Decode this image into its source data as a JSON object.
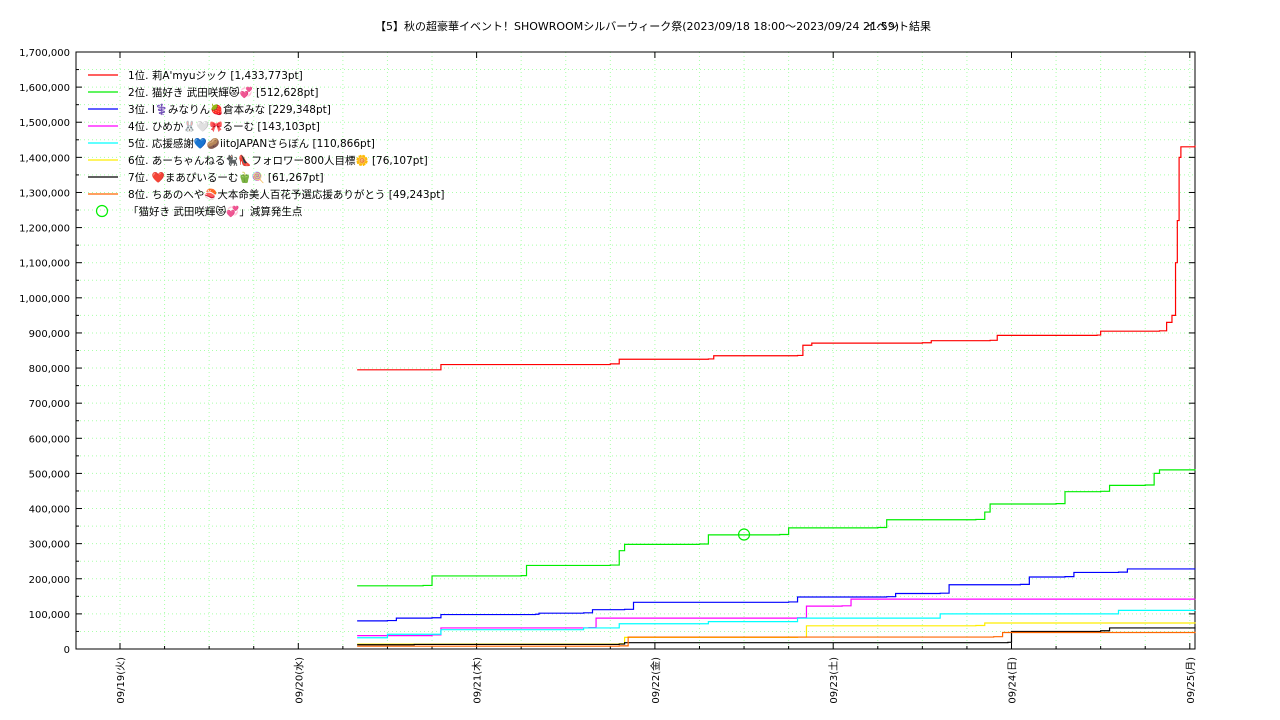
{
  "chart_data": {
    "type": "line",
    "title": "【5】秋の超豪華イベント！SHOWROOMシルバーウィーク祭(2023/09/18 18:00～2023/09/24 21:59)",
    "subtitle": "イベント結果",
    "x_tick_labels": [
      "09/19(火)",
      "09/20(水)",
      "09/21(木)",
      "09/22(金)",
      "09/23(土)",
      "09/24(日)",
      "09/25(月)"
    ],
    "xlim_days": [
      0,
      6
    ],
    "ylim": [
      0,
      1700000
    ],
    "y_tick_step": 100000,
    "y_tick_labels": [
      "0",
      "100,000",
      "200,000",
      "300,000",
      "400,000",
      "500,000",
      "600,000",
      "700,000",
      "800,000",
      "900,000",
      "1,000,000",
      "1,100,000",
      "1,200,000",
      "1,300,000",
      "1,400,000",
      "1,500,000",
      "1,600,000",
      "1,700,000"
    ],
    "grid": true,
    "legend_position": "top-left",
    "series": [
      {
        "name": "1位. 莉A'myuジック [1,433,773pt]",
        "color": "#ff0000",
        "points": [
          [
            1.33,
            795000
          ],
          [
            1.75,
            795000
          ],
          [
            1.8,
            810000
          ],
          [
            2.75,
            812000
          ],
          [
            2.8,
            825000
          ],
          [
            3.3,
            826000
          ],
          [
            3.33,
            835000
          ],
          [
            3.8,
            836000
          ],
          [
            3.83,
            865000
          ],
          [
            3.88,
            871000
          ],
          [
            4.5,
            872000
          ],
          [
            4.55,
            878000
          ],
          [
            4.88,
            879000
          ],
          [
            4.92,
            893000
          ],
          [
            5.48,
            894000
          ],
          [
            5.5,
            905000
          ],
          [
            5.83,
            906000
          ],
          [
            5.87,
            930000
          ],
          [
            5.9,
            950000
          ],
          [
            5.92,
            1100000
          ],
          [
            5.93,
            1220000
          ],
          [
            5.94,
            1400000
          ],
          [
            5.95,
            1430000
          ],
          [
            6.05,
            1433773
          ]
        ]
      },
      {
        "name": "2位. 猫好き 武田咲輝😻💞 [512,628pt]",
        "color": "#00ee00",
        "points": [
          [
            1.33,
            180000
          ],
          [
            1.7,
            181000
          ],
          [
            1.75,
            208000
          ],
          [
            2.25,
            209000
          ],
          [
            2.28,
            238000
          ],
          [
            2.75,
            239000
          ],
          [
            2.8,
            280000
          ],
          [
            2.83,
            298000
          ],
          [
            3.25,
            299000
          ],
          [
            3.3,
            325000
          ],
          [
            3.7,
            326000
          ],
          [
            3.75,
            345000
          ],
          [
            4.25,
            346000
          ],
          [
            4.3,
            368000
          ],
          [
            4.8,
            369000
          ],
          [
            4.85,
            390000
          ],
          [
            4.88,
            413000
          ],
          [
            5.25,
            414000
          ],
          [
            5.3,
            448000
          ],
          [
            5.5,
            449000
          ],
          [
            5.55,
            466000
          ],
          [
            5.75,
            467000
          ],
          [
            5.8,
            500000
          ],
          [
            5.83,
            510000
          ],
          [
            6.05,
            512628
          ]
        ]
      },
      {
        "name": "3位. I⚕️みなりん🍓倉本みな [229,348pt]",
        "color": "#0000ff",
        "points": [
          [
            1.33,
            80000
          ],
          [
            1.5,
            81000
          ],
          [
            1.55,
            88000
          ],
          [
            1.75,
            89000
          ],
          [
            1.8,
            98000
          ],
          [
            2.33,
            99000
          ],
          [
            2.35,
            102000
          ],
          [
            2.6,
            103000
          ],
          [
            2.65,
            112000
          ],
          [
            2.83,
            113000
          ],
          [
            2.88,
            133000
          ],
          [
            3.75,
            134000
          ],
          [
            3.8,
            148000
          ],
          [
            4.3,
            149000
          ],
          [
            4.35,
            158000
          ],
          [
            4.6,
            159000
          ],
          [
            4.65,
            183000
          ],
          [
            5.05,
            184000
          ],
          [
            5.1,
            205000
          ],
          [
            5.3,
            206000
          ],
          [
            5.35,
            218000
          ],
          [
            5.6,
            219000
          ],
          [
            5.65,
            228000
          ],
          [
            6.05,
            229348
          ]
        ]
      },
      {
        "name": "4位. ひめか🐰🤍🎀るーむ [143,103pt]",
        "color": "#ff00ff",
        "points": [
          [
            1.33,
            38000
          ],
          [
            1.75,
            40000
          ],
          [
            1.8,
            60000
          ],
          [
            2.63,
            61000
          ],
          [
            2.67,
            88000
          ],
          [
            3.8,
            89000
          ],
          [
            3.85,
            122000
          ],
          [
            4.05,
            123000
          ],
          [
            4.1,
            142000
          ],
          [
            6.05,
            143103
          ]
        ]
      },
      {
        "name": "5位. 応援感謝💙🥔iitoJAPANさらぼん [110,866pt]",
        "color": "#00ffff",
        "points": [
          [
            1.33,
            32000
          ],
          [
            1.5,
            42000
          ],
          [
            1.8,
            55000
          ],
          [
            2.6,
            60000
          ],
          [
            2.8,
            72000
          ],
          [
            3.3,
            78000
          ],
          [
            3.8,
            88000
          ],
          [
            4.6,
            100000
          ],
          [
            5.6,
            110000
          ],
          [
            6.05,
            110866
          ]
        ]
      },
      {
        "name": "6位. あーちゃんねる🐈‍⬛👠フォロワー800人目標🌼 [76,107pt]",
        "color": "#ffee00",
        "points": [
          [
            1.33,
            14000
          ],
          [
            2.8,
            15000
          ],
          [
            2.83,
            33000
          ],
          [
            3.8,
            34000
          ],
          [
            3.85,
            66000
          ],
          [
            4.8,
            67000
          ],
          [
            4.85,
            74000
          ],
          [
            6.05,
            76107
          ]
        ]
      },
      {
        "name": "7位. ❤️まあぴいるーむ🫑🍭 [61,267pt]",
        "color": "#000000",
        "points": [
          [
            1.33,
            12000
          ],
          [
            1.65,
            13000
          ],
          [
            2.8,
            14000
          ],
          [
            2.83,
            18000
          ],
          [
            4.98,
            19000
          ],
          [
            5.0,
            50000
          ],
          [
            5.5,
            52000
          ],
          [
            5.55,
            60000
          ],
          [
            6.05,
            61267
          ]
        ]
      },
      {
        "name": "8位. ちあのへや🍣大本命美人百花予選応援ありがとう [49,243pt]",
        "color": "#ff6600",
        "points": [
          [
            1.33,
            8000
          ],
          [
            2.8,
            9000
          ],
          [
            2.85,
            34000
          ],
          [
            4.9,
            35000
          ],
          [
            4.95,
            47000
          ],
          [
            6.05,
            49243
          ]
        ]
      }
    ],
    "markers": [
      {
        "name": "「猫好き 武田咲輝😻💞」減算発生点",
        "color": "#00ee00",
        "x": 3.5,
        "y": 326000
      }
    ]
  }
}
